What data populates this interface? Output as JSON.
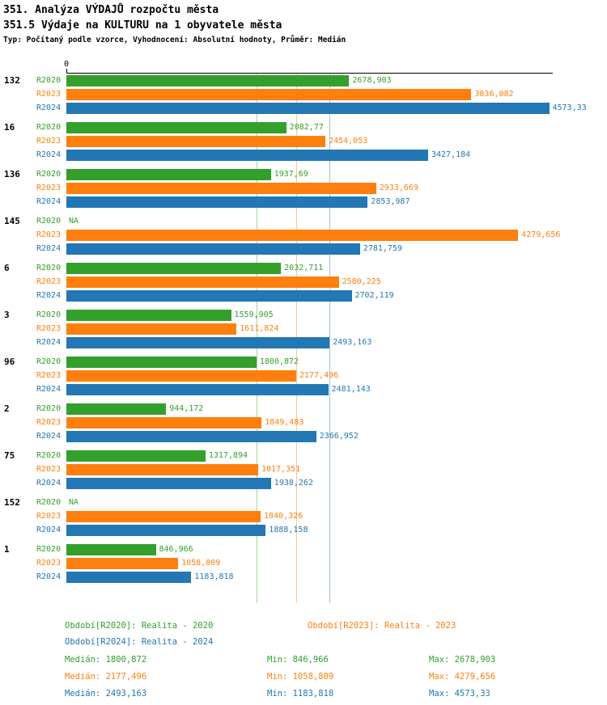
{
  "header": {
    "title1": "351. Analýza VÝDAJŮ rozpočtu města",
    "title2": "351.5 Výdaje na KULTURU na 1 obyvatele města",
    "subtitle": "Typ: Počítaný podle vzorce, Vyhodnocení: Absolutní hodnoty, Průměr: Medián"
  },
  "axis": {
    "zero_label": "0"
  },
  "chart_data": {
    "type": "bar",
    "orientation": "horizontal",
    "title": "351.5 Výdaje na KULTURU na 1 obyvatele města",
    "xlim": [
      0,
      4600
    ],
    "grid": "median-reference-lines",
    "legend_position": "bottom",
    "categories": [
      "132",
      "16",
      "136",
      "145",
      "6",
      "3",
      "96",
      "2",
      "75",
      "152",
      "1"
    ],
    "series": [
      {
        "name": "R2020",
        "color": "#33a02c",
        "values": [
          2678.903,
          2082.77,
          1937.69,
          null,
          2032.711,
          1559.905,
          1800.872,
          944.172,
          1317.894,
          null,
          846.966
        ],
        "labels": [
          "2678,903",
          "2082,77",
          "1937,69",
          "NA",
          "2032,711",
          "1559,905",
          "1800,872",
          "944,172",
          "1317,894",
          "NA",
          "846,966"
        ],
        "median": 1800.872
      },
      {
        "name": "R2023",
        "color": "#ff7f0e",
        "values": [
          3836.082,
          2454.053,
          2933.669,
          4279.656,
          2580.225,
          1611.824,
          2177.496,
          1849.483,
          1817.351,
          1840.326,
          1058.809
        ],
        "labels": [
          "3836,082",
          "2454,053",
          "2933,669",
          "4279,656",
          "2580,225",
          "1611,824",
          "2177,496",
          "1849,483",
          "1817,351",
          "1840,326",
          "1058,809"
        ],
        "median": 2177.496
      },
      {
        "name": "R2024",
        "color": "#2277b4",
        "values": [
          4573.33,
          3427.184,
          2853.987,
          2781.759,
          2702.119,
          2493.163,
          2481.143,
          2366.952,
          1938.262,
          1888.158,
          1183.818
        ],
        "labels": [
          "4573,33",
          "3427,184",
          "2853,987",
          "2781,759",
          "2702,119",
          "2493,163",
          "2481,143",
          "2366,952",
          "1938,262",
          "1888,158",
          "1183,818"
        ],
        "median": 2493.163
      }
    ]
  },
  "legend": [
    {
      "label": "Období[R2020]: Realita - 2020"
    },
    {
      "label": "Období[R2023]: Realita - 2023"
    },
    {
      "label": "Období[R2024]: Realita - 2024"
    }
  ],
  "stats": [
    {
      "median": "Medián: 1800,872",
      "min": "Min: 846,966",
      "max": "Max: 2678,903"
    },
    {
      "median": "Medián: 2177,496",
      "min": "Min: 1058,809",
      "max": "Max: 4279,656"
    },
    {
      "median": "Medián: 2493,163",
      "min": "Min: 1183,818",
      "max": "Max: 4573,33"
    }
  ]
}
